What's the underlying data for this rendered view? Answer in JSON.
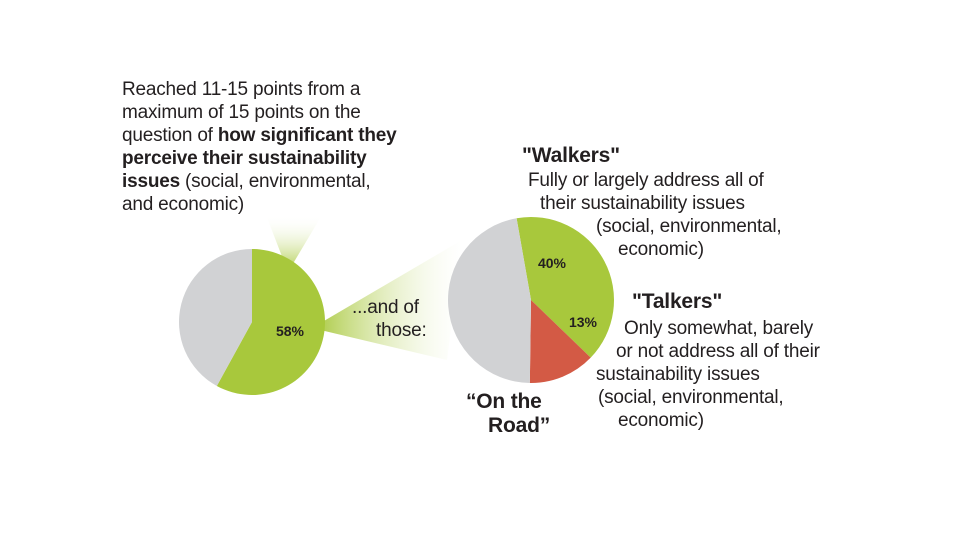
{
  "chart_data": [
    {
      "type": "pie",
      "slices": [
        {
          "label": "58%",
          "value": 58,
          "color": "#a8c83c"
        },
        {
          "label": "",
          "value": 42,
          "color": "#d1d2d4"
        }
      ]
    },
    {
      "type": "pie",
      "slices": [
        {
          "label": "40%",
          "value": 40,
          "color": "#a8c83c",
          "group": "Walkers"
        },
        {
          "label": "13%",
          "value": 13,
          "color": "#d35a45",
          "group": "Talkers"
        },
        {
          "label": "",
          "value": 47,
          "color": "#d1d2d4",
          "group": "On the Road"
        }
      ]
    }
  ],
  "annotation": {
    "line1": "Reached 11-15 points from a",
    "line2": "maximum of 15 points on the",
    "line3_plain": "question of ",
    "line3_bold": "how significant they",
    "line4_bold": "perceive their sustainability",
    "line5_bold": "issues",
    "line5_plain": " (social, environmental,",
    "line6": "and economic)"
  },
  "connector": {
    "line1": "...and of",
    "line2": "those:"
  },
  "walkers": {
    "title": "\"Walkers\"",
    "line1": "Fully or largely address all of",
    "line2": "their sustainability issues",
    "line3": "(social, environmental,",
    "line4": "economic)"
  },
  "talkers": {
    "title": "\"Talkers\"",
    "line1": "Only somewhat, barely",
    "line2": "or not address all of their",
    "line3": "sustainability issues",
    "line4": "(social, environmental,",
    "line5": "economic)"
  },
  "on_the_road": {
    "line1": "“On the",
    "line2": "Road”"
  }
}
